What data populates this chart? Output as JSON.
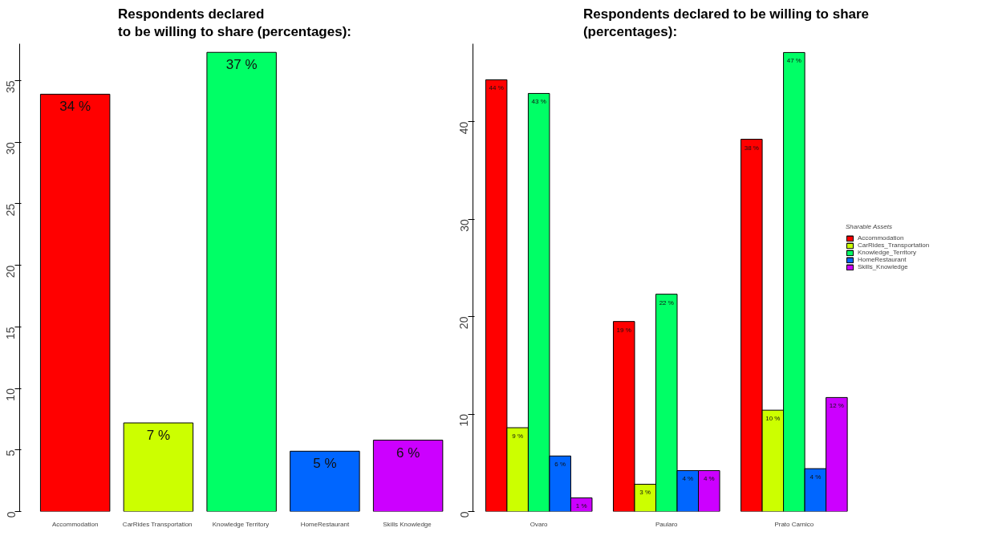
{
  "chart_data": [
    {
      "type": "bar",
      "title": "Respondents declared\nto be willing to share (percentages):",
      "categories": [
        "Accommodation",
        "CarRides  Transportation",
        "Knowledge  Territory",
        "HomeRestaurant",
        "Skills  Knowledge"
      ],
      "values": [
        33.9,
        7.2,
        37.3,
        4.9,
        5.8
      ],
      "colors": [
        "#ff0000",
        "#ccff00",
        "#00ff66",
        "#0066ff",
        "#cc00ff"
      ],
      "value_labels": [
        "34 %",
        "7 %",
        "37 %",
        "5 %",
        "6 %"
      ],
      "ylim": [
        0,
        38
      ],
      "yticks": [
        0,
        5,
        10,
        15,
        20,
        25,
        30,
        35
      ],
      "grid": false,
      "legend": false
    },
    {
      "type": "bar",
      "title": "Respondents declared to be willing to share\n(percentages):",
      "categories": [
        "Ovaro",
        "Paularo",
        "Prato Carnico"
      ],
      "legend_title": "Sharable Assets",
      "legend": "right",
      "grid": false,
      "ylim": [
        0,
        48
      ],
      "yticks": [
        0,
        10,
        20,
        30,
        40
      ],
      "series": [
        {
          "name": "Accommodation",
          "color": "#ff0000",
          "values": [
            44.3,
            19.5,
            38.2
          ],
          "value_labels": [
            "44 %",
            "19 %",
            "38 %"
          ]
        },
        {
          "name": "CarRides_Transportation",
          "color": "#ccff00",
          "values": [
            8.6,
            2.8,
            10.4
          ],
          "value_labels": [
            "9 %",
            "3 %",
            "10 %"
          ]
        },
        {
          "name": "Knowledge_Territory",
          "color": "#00ff66",
          "values": [
            42.9,
            22.3,
            47.1
          ],
          "value_labels": [
            "43 %",
            "22 %",
            "47 %"
          ]
        },
        {
          "name": "HomeRestaurant",
          "color": "#0066ff",
          "values": [
            5.7,
            4.2,
            4.4
          ],
          "value_labels": [
            "6 %",
            "4 %",
            "4 %"
          ]
        },
        {
          "name": "Skills_Knowledge",
          "color": "#cc00ff",
          "values": [
            1.4,
            4.2,
            11.7
          ],
          "value_labels": [
            "1 %",
            "4 %",
            "12 %"
          ]
        }
      ]
    }
  ]
}
